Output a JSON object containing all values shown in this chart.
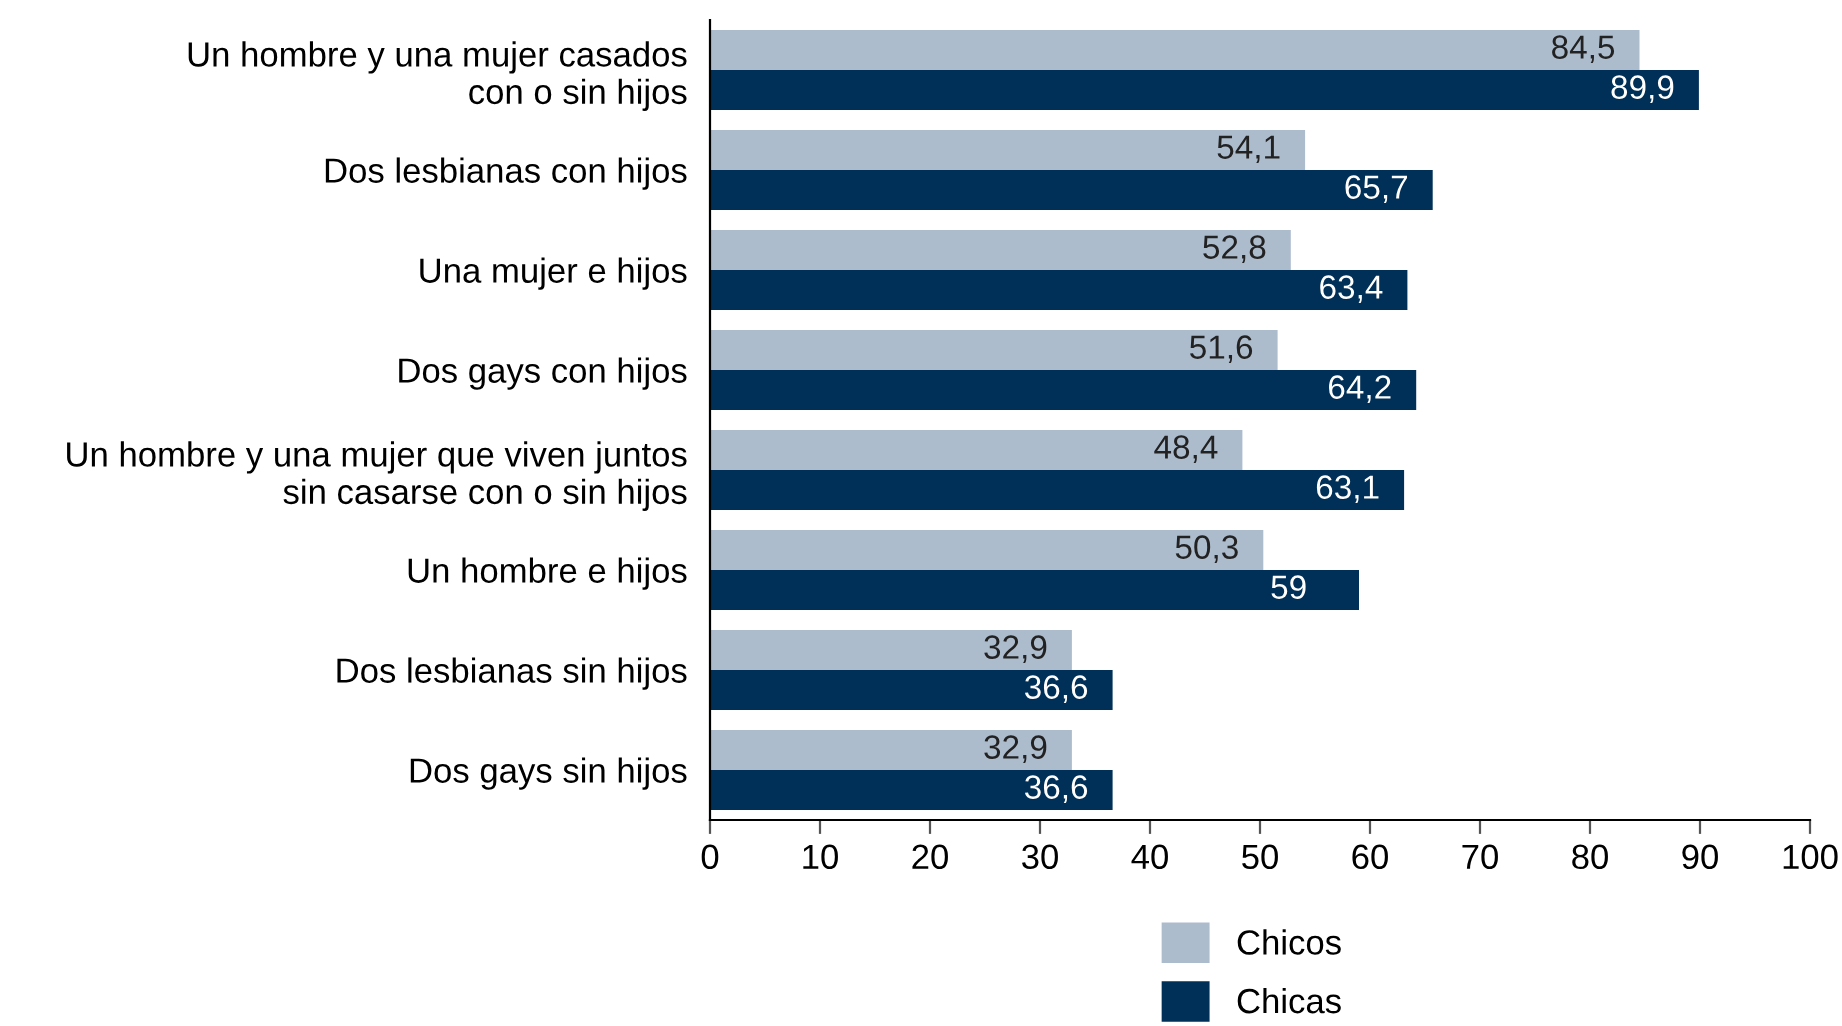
{
  "chart_data": {
    "type": "bar",
    "orientation": "horizontal",
    "categories": [
      "Un hombre y una mujer casados\ncon o sin hijos",
      "Dos lesbianas con hijos",
      "Una mujer e hijos",
      "Dos gays con hijos",
      "Un hombre y una mujer que viven juntos\nsin casarse con o sin hijos",
      "Un hombre e hijos",
      "Dos lesbianas sin hijos",
      "Dos gays sin hijos"
    ],
    "series": [
      {
        "name": "Chicos",
        "color": "#adbccd",
        "values": [
          84.5,
          54.1,
          52.8,
          51.6,
          48.4,
          50.3,
          32.9,
          32.9
        ],
        "value_labels": [
          "84,5",
          "54,1",
          "52,8",
          "51,6",
          "48,4",
          "50,3",
          "32,9",
          "32,9"
        ]
      },
      {
        "name": "Chicas",
        "color": "#003057",
        "values": [
          89.9,
          65.7,
          63.4,
          64.2,
          63.1,
          59,
          36.6,
          36.6
        ],
        "value_labels": [
          "89,9",
          "65,7",
          "63,4",
          "64,2",
          "63,1",
          "59",
          "36,6",
          "36,6"
        ]
      }
    ],
    "xlim": [
      0,
      100
    ],
    "xticks": [
      0,
      10,
      20,
      30,
      40,
      50,
      60,
      70,
      80,
      90,
      100
    ],
    "grid": false,
    "legend": "bottom"
  }
}
